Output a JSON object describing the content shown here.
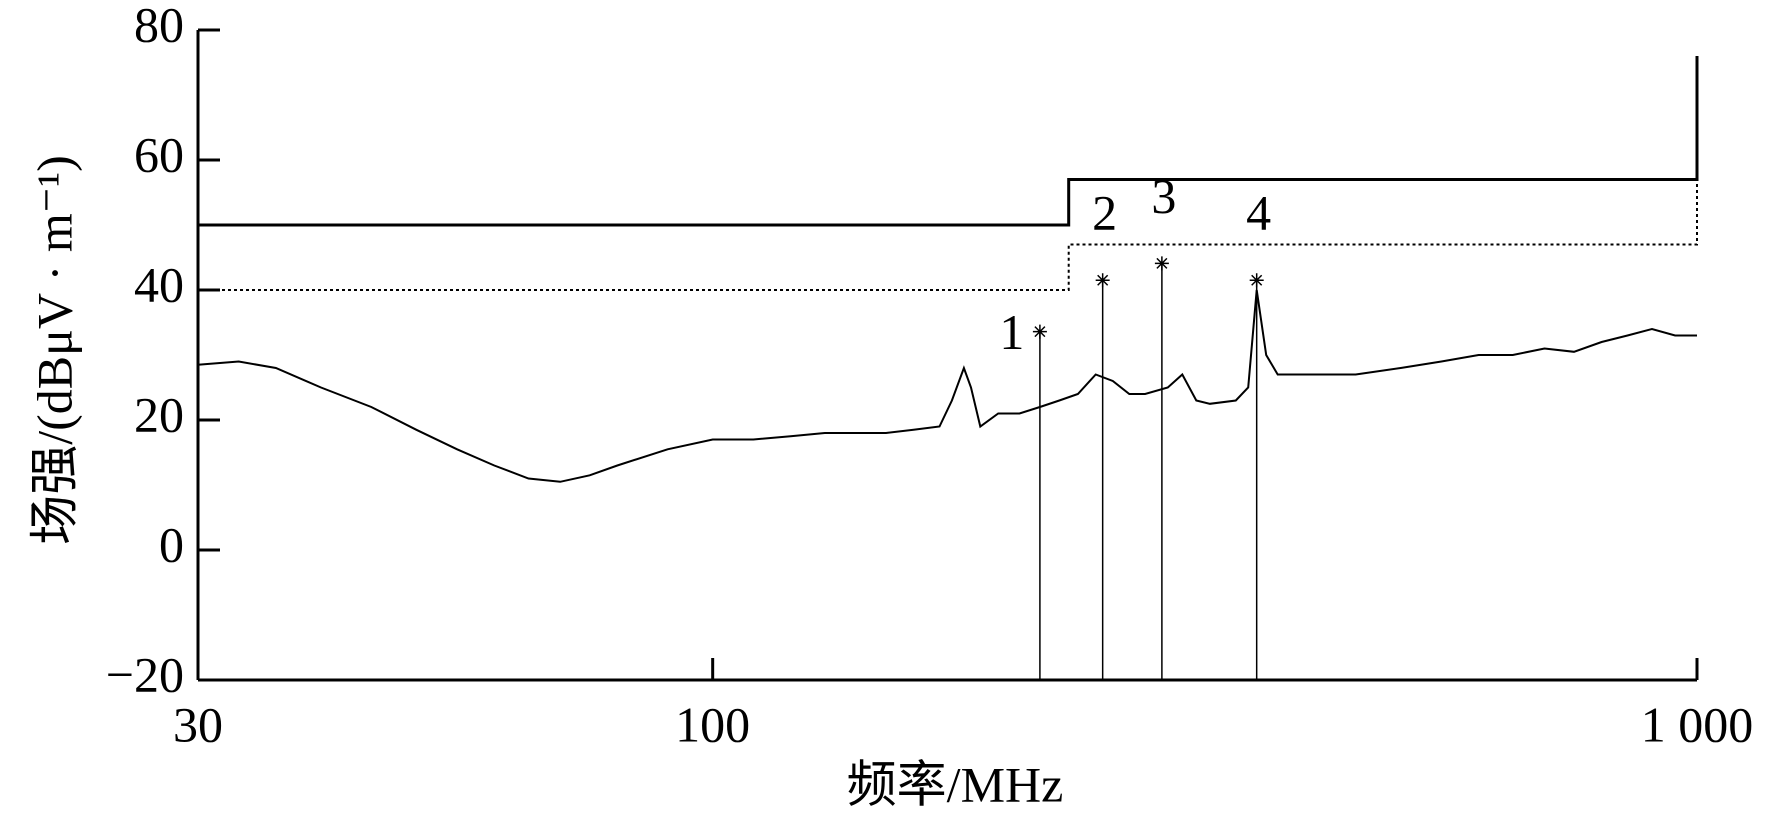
{
  "chart_data": {
    "type": "line",
    "xscale": "log",
    "xlabel": "频率/MHz",
    "ylabel": "场强/(dBμV · m⁻¹)",
    "xlim": [
      30,
      1000
    ],
    "ylim": [
      -20,
      80
    ],
    "xticks": [
      30,
      100,
      {
        "value": 1000,
        "label": "1 000"
      }
    ],
    "yticks": [
      {
        "value": -20,
        "label": "−20"
      },
      0,
      20,
      40,
      60,
      80
    ],
    "series": [
      {
        "name": "trace",
        "color": "#000000",
        "style": "solid",
        "x": [
          30,
          33,
          36,
          40,
          45,
          50,
          55,
          60,
          65,
          70,
          75,
          80,
          90,
          100,
          110,
          120,
          130,
          140,
          150,
          160,
          170,
          175,
          180,
          183,
          187,
          195,
          205,
          215,
          225,
          235,
          245,
          255,
          265,
          275,
          290,
          300,
          310,
          320,
          340,
          350,
          357,
          365,
          375,
          400,
          450,
          500,
          550,
          600,
          650,
          700,
          750,
          800,
          850,
          900,
          950,
          1000
        ],
        "values": [
          28.5,
          29,
          28,
          25,
          22,
          18.5,
          15.5,
          13,
          11,
          10.5,
          11.5,
          13,
          15.5,
          17,
          17,
          17.5,
          18,
          18,
          18,
          18.5,
          19,
          23,
          28,
          25,
          19,
          21,
          21,
          22,
          23,
          24,
          27,
          26,
          24,
          24,
          25,
          27,
          23,
          22.5,
          23,
          25,
          40,
          30,
          27,
          27,
          27,
          28,
          29,
          30,
          30,
          31,
          30.5,
          32,
          33,
          34,
          33,
          33
        ]
      },
      {
        "name": "limit",
        "color": "#000000",
        "style": "solid",
        "x": [
          30,
          230,
          230,
          1000,
          1000
        ],
        "values": [
          50,
          50,
          57,
          57,
          76
        ]
      },
      {
        "name": "limit-dotted",
        "color": "#000000",
        "style": "dotted",
        "x": [
          30,
          230,
          230,
          1000,
          1000
        ],
        "values": [
          40,
          40,
          47,
          47,
          57
        ]
      }
    ],
    "markers": {
      "labels": [
        "1",
        "2",
        "3",
        "4"
      ],
      "x": [
        215,
        249,
        286,
        357
      ],
      "values": [
        33.6,
        41.5,
        44.1,
        41.5
      ]
    }
  }
}
